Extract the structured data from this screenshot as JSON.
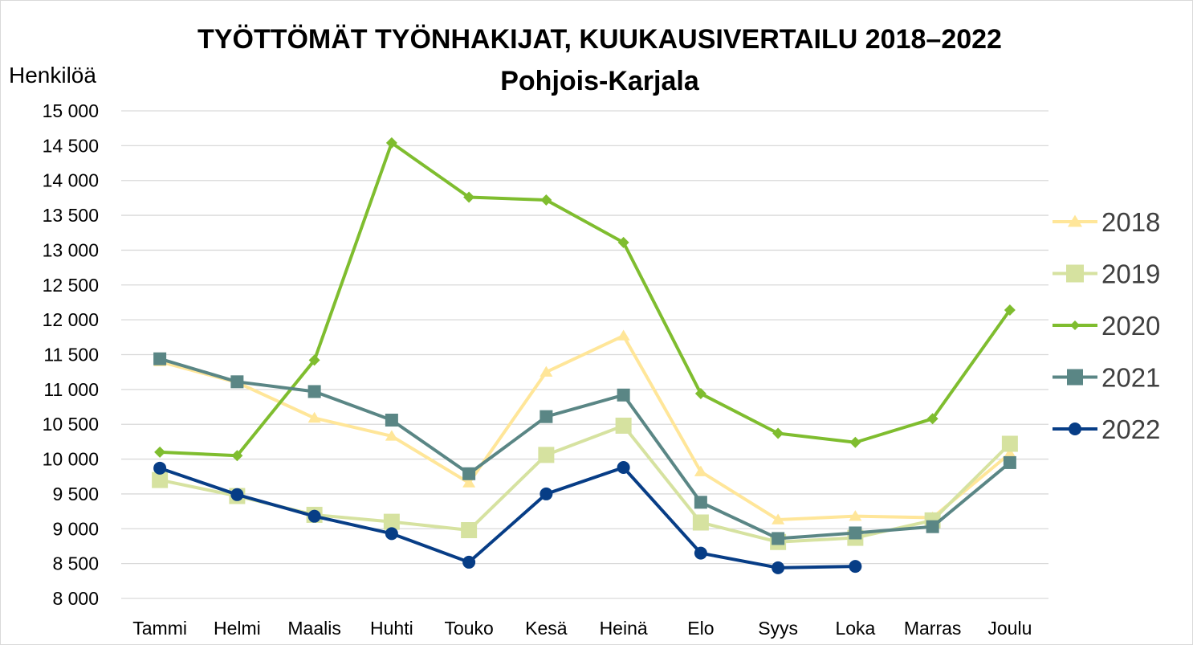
{
  "chart_data": {
    "type": "line",
    "title": "TYÖTTÖMÄT TYÖNHAKIJAT, KUUKAUSIVERTAILU 2018–2022",
    "subtitle": "Pohjois-Karjala",
    "ylabel": "Henkilöä",
    "xlabel": "",
    "categories": [
      "Tammi",
      "Helmi",
      "Maalis",
      "Huhti",
      "Touko",
      "Kesä",
      "Heinä",
      "Elo",
      "Syys",
      "Loka",
      "Marras",
      "Joulu"
    ],
    "ylim": [
      8000,
      15000
    ],
    "yticks": [
      8000,
      8500,
      9000,
      9500,
      10000,
      10500,
      11000,
      11500,
      12000,
      12500,
      13000,
      13500,
      14000,
      14500,
      15000
    ],
    "ytick_labels": [
      "8 000",
      "8 500",
      "9 000",
      "9 500",
      "10 000",
      "10 500",
      "11 000",
      "11 500",
      "12 000",
      "12 500",
      "13 000",
      "13 500",
      "14 000",
      "14 500",
      "15 000"
    ],
    "grid": true,
    "legend_position": "right",
    "series": [
      {
        "name": "2018",
        "color": "#ffe699",
        "marker": "triangle",
        "values": [
          11400,
          11100,
          10590,
          10330,
          9660,
          11250,
          11770,
          9820,
          9130,
          9180,
          9160,
          10080
        ]
      },
      {
        "name": "2019",
        "color": "#d6e2a0",
        "marker": "square",
        "values": [
          9700,
          9470,
          9200,
          9100,
          8980,
          10060,
          10480,
          9090,
          8810,
          8870,
          9120,
          10220
        ]
      },
      {
        "name": "2020",
        "color": "#7fbd2f",
        "marker": "diamond",
        "values": [
          10100,
          10050,
          11420,
          14540,
          13760,
          13720,
          13110,
          10940,
          10370,
          10240,
          10580,
          12140
        ]
      },
      {
        "name": "2021",
        "color": "#5a8685",
        "marker": "square",
        "values": [
          11440,
          11110,
          10970,
          10560,
          9790,
          10610,
          10920,
          9380,
          8860,
          8940,
          9030,
          9950
        ]
      },
      {
        "name": "2022",
        "color": "#073d86",
        "marker": "circle",
        "values": [
          9870,
          9490,
          9180,
          8930,
          8520,
          9500,
          9880,
          8650,
          8440,
          8460,
          null,
          null
        ]
      }
    ]
  }
}
